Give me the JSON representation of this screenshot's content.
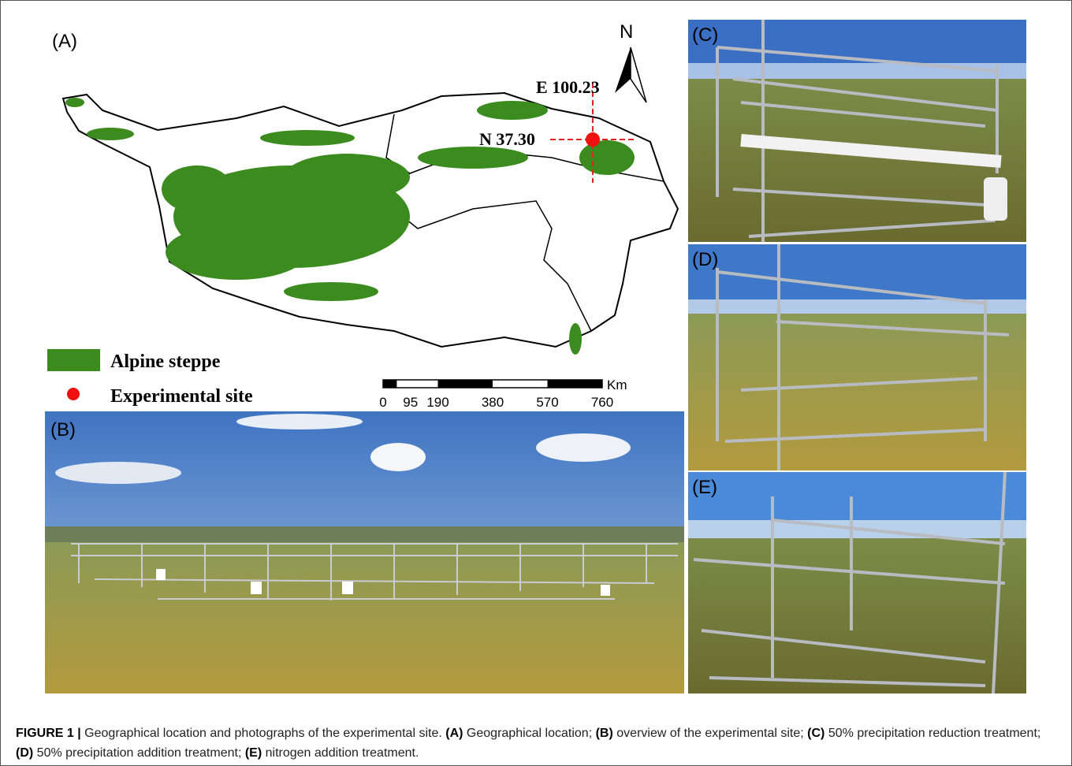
{
  "panel_a": {
    "label": "(A)",
    "north": "N",
    "longitude": "E 100.23",
    "latitude": "N 37.30",
    "legend": [
      "Alpine steppe",
      "Experimental site"
    ],
    "scale_bar": {
      "unit": "Km",
      "ticks": [
        0,
        95,
        190,
        380,
        570,
        760
      ]
    }
  },
  "panel_b": {
    "label": "(B)"
  },
  "panel_c": {
    "label": "(C)"
  },
  "panel_d": {
    "label": "(D)"
  },
  "panel_e": {
    "label": "(E)"
  },
  "caption": {
    "label": "FIGURE 1 |",
    "parts": [
      "Geographical location and photographs of the experimental site.",
      "(A)",
      "Geographical location;",
      "(B)",
      "overview of the experimental site;",
      "(C)",
      "50% precipitation reduction treatment;",
      "(D)",
      "50% precipitation addition treatment;",
      "(E)",
      "nitrogen addition treatment."
    ]
  }
}
